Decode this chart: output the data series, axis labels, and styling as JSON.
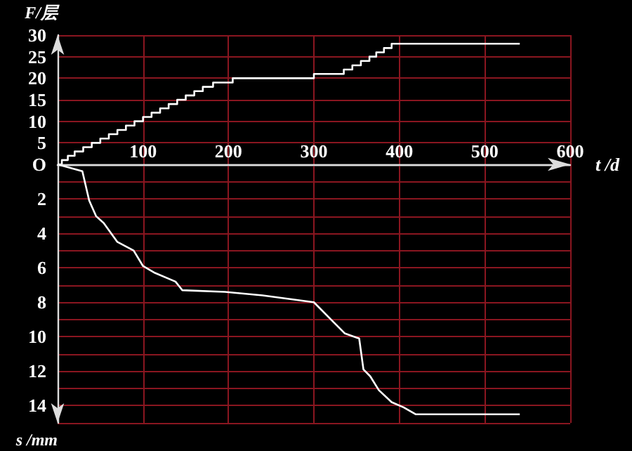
{
  "chart_data": [
    {
      "type": "step",
      "xlabel": "t /d",
      "ylabel": "F/层",
      "color": "#ffffff",
      "marker": "none",
      "grid": true,
      "x": [
        0,
        5,
        12,
        20,
        30,
        40,
        50,
        60,
        70,
        80,
        90,
        100,
        110,
        120,
        130,
        140,
        150,
        160,
        170,
        182,
        205,
        300,
        335,
        345,
        355,
        365,
        373,
        382,
        391,
        541
      ],
      "values": [
        0,
        1,
        2,
        3,
        4,
        5,
        6,
        7,
        8,
        9,
        10,
        11,
        12,
        13,
        14,
        15,
        16,
        17,
        18,
        19,
        20,
        21,
        22,
        23,
        24,
        25,
        26,
        27,
        28,
        28
      ],
      "xlim": [
        0,
        600
      ],
      "xticks": [
        {
          "value": 0,
          "label": null
        },
        100,
        200,
        300,
        400,
        500,
        600
      ],
      "ylim": [
        0,
        30
      ],
      "yticks": [
        {
          "value": 0,
          "label": "O"
        },
        5,
        10,
        15,
        20,
        25,
        30
      ]
    },
    {
      "type": "line",
      "ylabel": "s /mm",
      "color": "#ffffff",
      "marker": "none",
      "grid": true,
      "tick_labels": "y",
      "x": [
        0,
        29,
        37,
        45,
        54,
        70,
        89,
        100,
        114,
        138,
        146,
        196,
        240,
        300,
        320,
        336,
        353,
        358,
        366,
        376,
        391,
        405,
        419,
        438,
        541
      ],
      "values": [
        0,
        0.4,
        2.1,
        3.0,
        3.4,
        4.5,
        5.0,
        5.9,
        6.3,
        6.8,
        7.3,
        7.4,
        7.6,
        8.0,
        9.0,
        9.8,
        10.1,
        11.9,
        12.3,
        13.1,
        13.8,
        14.1,
        14.5,
        14.5,
        14.5
      ],
      "xlim": [
        0,
        600
      ],
      "xticks": [
        0,
        100,
        200,
        300,
        400,
        500,
        600
      ],
      "ylim": [
        15,
        0
      ],
      "yticks": [
        {
          "value": 0,
          "label": null
        },
        {
          "value": 1,
          "label": null
        },
        2,
        {
          "value": 3,
          "label": null
        },
        4,
        {
          "value": 5,
          "label": null
        },
        6,
        {
          "value": 7,
          "label": null
        },
        8,
        {
          "value": 9,
          "label": null
        },
        10,
        {
          "value": 11,
          "label": null
        },
        12,
        {
          "value": 13,
          "label": null
        },
        14,
        {
          "value": 15,
          "label": null
        }
      ]
    }
  ]
}
